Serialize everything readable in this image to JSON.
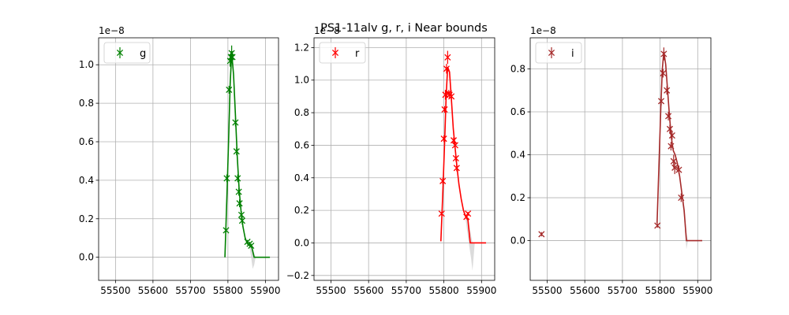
{
  "figure": {
    "title": "PS1-11alv  g, r, i Near bounds"
  },
  "chart_data": [
    {
      "type": "line",
      "band": "g",
      "color": "#008000",
      "offset_label": "1e−8",
      "xlim": [
        55455,
        55935
      ],
      "ylim": [
        -0.12,
        1.14
      ],
      "xticks": [
        55500,
        55600,
        55700,
        55800,
        55900
      ],
      "yticks": [
        0.0,
        0.2,
        0.4,
        0.6,
        0.8,
        1.0
      ],
      "ytick_labels": [
        "0.0",
        "0.2",
        "0.4",
        "0.6",
        "0.8",
        "1.0"
      ],
      "grid": true,
      "legend": {
        "label": "g",
        "placement": "top-left"
      },
      "model": {
        "x": [
          55792,
          55797,
          55802,
          55806,
          55810,
          55815,
          55820,
          55825,
          55830,
          55835,
          55840,
          55846,
          55852,
          55858,
          55864,
          55870,
          55880,
          55890,
          55900,
          55912
        ],
        "y": [
          0.0,
          0.3,
          0.62,
          0.9,
          1.06,
          0.95,
          0.74,
          0.52,
          0.35,
          0.24,
          0.16,
          0.1,
          0.07,
          0.06,
          0.05,
          0.0,
          0.0,
          0.0,
          0.0,
          0.0
        ]
      },
      "band_fill": {
        "x": [
          55858,
          55862,
          55866,
          55870,
          55874
        ],
        "upper": [
          0.07,
          0.06,
          0.05,
          0.02,
          0.0
        ],
        "lower": [
          0.05,
          0.0,
          -0.06,
          -0.04,
          0.0
        ]
      },
      "points": {
        "x": [
          55795,
          55797,
          55803,
          55806,
          55808,
          55810,
          55812,
          55820,
          55823,
          55826,
          55829,
          55831,
          55836,
          55838,
          55852,
          55858,
          55862
        ],
        "y": [
          0.14,
          0.41,
          0.87,
          1.02,
          1.04,
          1.06,
          1.04,
          0.7,
          0.55,
          0.41,
          0.34,
          0.28,
          0.22,
          0.19,
          0.08,
          0.07,
          0.06
        ],
        "err": [
          0.01,
          0.02,
          0.02,
          0.03,
          0.03,
          0.04,
          0.03,
          0.02,
          0.02,
          0.02,
          0.02,
          0.02,
          0.02,
          0.02,
          0.01,
          0.01,
          0.01
        ]
      }
    },
    {
      "type": "line",
      "band": "r",
      "color": "#ff0000",
      "offset_label": "1e−8",
      "xlim": [
        55455,
        55935
      ],
      "ylim": [
        -0.23,
        1.26
      ],
      "xticks": [
        55500,
        55600,
        55700,
        55800,
        55900
      ],
      "yticks": [
        -0.2,
        0.0,
        0.2,
        0.4,
        0.6,
        0.8,
        1.0,
        1.2
      ],
      "ytick_labels": [
        "−0.2",
        "0.0",
        "0.2",
        "0.4",
        "0.6",
        "0.8",
        "1.0",
        "1.2"
      ],
      "grid": true,
      "legend": {
        "label": "r",
        "placement": "top-left"
      },
      "model": {
        "x": [
          55792,
          55797,
          55802,
          55806,
          55810,
          55815,
          55820,
          55825,
          55830,
          55835,
          55840,
          55846,
          55852,
          55858,
          55864,
          55870,
          55880,
          55890,
          55900,
          55912
        ],
        "y": [
          0.01,
          0.3,
          0.62,
          0.9,
          1.08,
          1.05,
          0.88,
          0.7,
          0.58,
          0.46,
          0.36,
          0.27,
          0.2,
          0.16,
          0.14,
          0.0,
          0.0,
          0.0,
          0.0,
          0.0
        ]
      },
      "band_fill": {
        "x": [
          55858,
          55866,
          55872,
          55876,
          55882
        ],
        "upper": [
          0.16,
          0.12,
          0.05,
          0.0,
          0.0
        ],
        "lower": [
          0.14,
          0.0,
          -0.09,
          -0.17,
          0.0
        ]
      },
      "points": {
        "x": [
          55794,
          55797,
          55800,
          55802,
          55804,
          55807,
          55810,
          55813,
          55815,
          55820,
          55826,
          55830,
          55832,
          55834,
          55860,
          55864
        ],
        "y": [
          0.18,
          0.38,
          0.64,
          0.82,
          0.91,
          1.07,
          1.14,
          0.92,
          0.91,
          0.9,
          0.63,
          0.6,
          0.52,
          0.46,
          0.16,
          0.18
        ],
        "err": [
          0.01,
          0.02,
          0.02,
          0.02,
          0.03,
          0.03,
          0.04,
          0.02,
          0.02,
          0.02,
          0.02,
          0.02,
          0.02,
          0.02,
          0.01,
          0.01
        ]
      }
    },
    {
      "type": "line",
      "band": "i",
      "color": "#a52a2a",
      "offset_label": "1e−8",
      "xlim": [
        55455,
        55935
      ],
      "ylim": [
        -0.185,
        0.945
      ],
      "xticks": [
        55500,
        55600,
        55700,
        55800,
        55900
      ],
      "yticks": [
        0.0,
        0.2,
        0.4,
        0.6,
        0.8
      ],
      "ytick_labels": [
        "0.0",
        "0.2",
        "0.4",
        "0.6",
        "0.8"
      ],
      "grid": true,
      "legend": {
        "label": "i",
        "placement": "top-left"
      },
      "model": {
        "x": [
          55792,
          55797,
          55802,
          55806,
          55810,
          55815,
          55820,
          55825,
          55830,
          55835,
          55840,
          55846,
          55852,
          55858,
          55864,
          55870,
          55880,
          55890,
          55900,
          55912
        ],
        "y": [
          0.08,
          0.35,
          0.62,
          0.8,
          0.88,
          0.82,
          0.7,
          0.58,
          0.48,
          0.42,
          0.4,
          0.36,
          0.3,
          0.22,
          0.14,
          0.0,
          0.0,
          0.0,
          0.0,
          0.0
        ]
      },
      "band_fill": {
        "x": [
          55858,
          55864,
          55870,
          55874
        ],
        "upper": [
          0.22,
          0.16,
          0.04,
          0.0
        ],
        "lower": [
          0.2,
          0.1,
          -0.04,
          0.0
        ]
      },
      "points": {
        "x": [
          55485,
          55793,
          55803,
          55808,
          55810,
          55818,
          55822,
          55826,
          55829,
          55832,
          55836,
          55839,
          55850,
          55856
        ],
        "y": [
          0.03,
          0.07,
          0.65,
          0.78,
          0.87,
          0.7,
          0.58,
          0.52,
          0.44,
          0.49,
          0.37,
          0.34,
          0.33,
          0.2
        ],
        "err": [
          0.01,
          0.01,
          0.02,
          0.02,
          0.03,
          0.02,
          0.02,
          0.02,
          0.02,
          0.02,
          0.03,
          0.03,
          0.02,
          0.02
        ]
      }
    }
  ]
}
